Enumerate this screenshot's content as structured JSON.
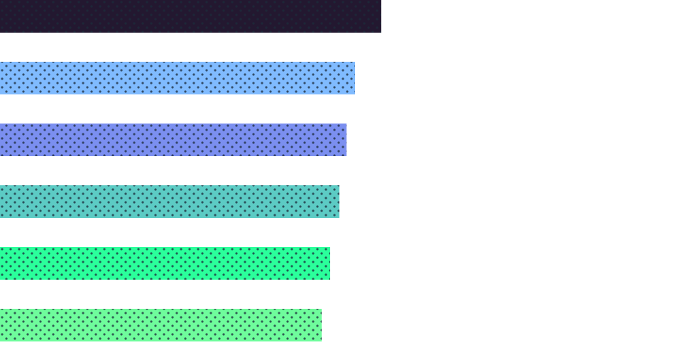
{
  "chart_data": {
    "type": "bar",
    "orientation": "horizontal",
    "values": [
      537,
      500,
      488,
      478,
      465,
      453
    ],
    "colors": [
      "#231830",
      "#80bbff",
      "#7b8ff0",
      "#5ccbc4",
      "#2bff9b",
      "#6ffc9c"
    ]
  }
}
